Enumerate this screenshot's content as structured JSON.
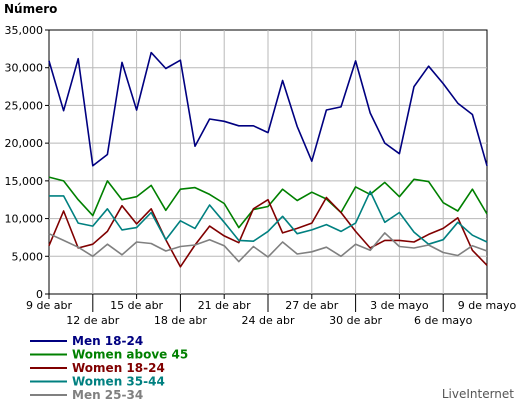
{
  "chart_data": {
    "type": "line",
    "ylabel": "Número",
    "ylim": [
      0,
      35000
    ],
    "y_ticks": [
      "0",
      "5,000",
      "10,000",
      "15,000",
      "20,000",
      "25,000",
      "30,000",
      "35,000"
    ],
    "x": [
      "9 abr",
      "10 abr",
      "11 abr",
      "12 abr",
      "13 abr",
      "14 abr",
      "15 abr",
      "16 abr",
      "17 abr",
      "18 abr",
      "19 abr",
      "20 abr",
      "21 abr",
      "22 abr",
      "23 abr",
      "24 abr",
      "25 abr",
      "26 abr",
      "27 abr",
      "28 abr",
      "29 abr",
      "30 abr",
      "1 mayo",
      "2 mayo",
      "3 mayo",
      "4 mayo",
      "5 mayo",
      "6 mayo",
      "7 mayo",
      "8 mayo",
      "9 mayo"
    ],
    "x_tick_labels": [
      {
        "index": 0,
        "label": "9 de abr",
        "row": 1
      },
      {
        "index": 3,
        "label": "12 de abr",
        "row": 2
      },
      {
        "index": 6,
        "label": "15 de abr",
        "row": 1
      },
      {
        "index": 9,
        "label": "18 de abr",
        "row": 2
      },
      {
        "index": 12,
        "label": "21 de abr",
        "row": 1
      },
      {
        "index": 15,
        "label": "24 de abr",
        "row": 2
      },
      {
        "index": 18,
        "label": "27 de abr",
        "row": 1
      },
      {
        "index": 21,
        "label": "30 de abr",
        "row": 2
      },
      {
        "index": 24,
        "label": "3 de mayo",
        "row": 1
      },
      {
        "index": 27,
        "label": "6 de mayo",
        "row": 2
      },
      {
        "index": 30,
        "label": "9 de mayo",
        "row": 1
      }
    ],
    "grid": true,
    "legend_position": "bottom-left",
    "series": [
      {
        "name": "Men 18-24",
        "color": "#000080",
        "values": [
          30900,
          24300,
          31200,
          17000,
          18500,
          30700,
          24400,
          32000,
          29900,
          31000,
          19600,
          23200,
          22900,
          22300,
          22300,
          21400,
          28300,
          22200,
          17600,
          24400,
          24800,
          30900,
          24000,
          20000,
          18600,
          27500,
          30200,
          27900,
          25300,
          23800,
          17000
        ]
      },
      {
        "name": "Women above 45",
        "color": "#008000",
        "values": [
          15500,
          15000,
          12500,
          10400,
          15000,
          12500,
          12900,
          14400,
          11100,
          13900,
          14100,
          13200,
          12000,
          8800,
          11200,
          11600,
          13900,
          12400,
          13500,
          12600,
          10800,
          14200,
          13200,
          14800,
          12900,
          15200,
          14900,
          12100,
          11000,
          13900,
          10600
        ]
      },
      {
        "name": "Women 18-24",
        "color": "#800000",
        "values": [
          6400,
          11000,
          6100,
          6600,
          8300,
          11700,
          9300,
          11300,
          7200,
          3600,
          6500,
          9000,
          7700,
          6800,
          11300,
          12500,
          8100,
          8700,
          9400,
          12800,
          10800,
          8300,
          6100,
          7100,
          7100,
          6900,
          7900,
          8700,
          10100,
          5800,
          3800
        ]
      },
      {
        "name": "Women 35-44",
        "color": "#008080",
        "values": [
          13000,
          13000,
          9400,
          9000,
          11300,
          8500,
          8800,
          10800,
          7200,
          9700,
          8700,
          11800,
          9500,
          7100,
          7000,
          8300,
          10300,
          8000,
          8500,
          9200,
          8300,
          9400,
          13600,
          9500,
          10800,
          8200,
          6600,
          7200,
          9500,
          7800,
          6900
        ]
      },
      {
        "name": "Men 25-34",
        "color": "#808080",
        "values": [
          8000,
          7100,
          6200,
          5000,
          6600,
          5200,
          6900,
          6700,
          5700,
          6300,
          6500,
          7200,
          6400,
          4300,
          6300,
          4900,
          6900,
          5300,
          5600,
          6200,
          5000,
          6600,
          5800,
          8100,
          6300,
          6100,
          6500,
          5500,
          5100,
          6400,
          5700
        ]
      }
    ]
  },
  "credit": "LiveInternet"
}
